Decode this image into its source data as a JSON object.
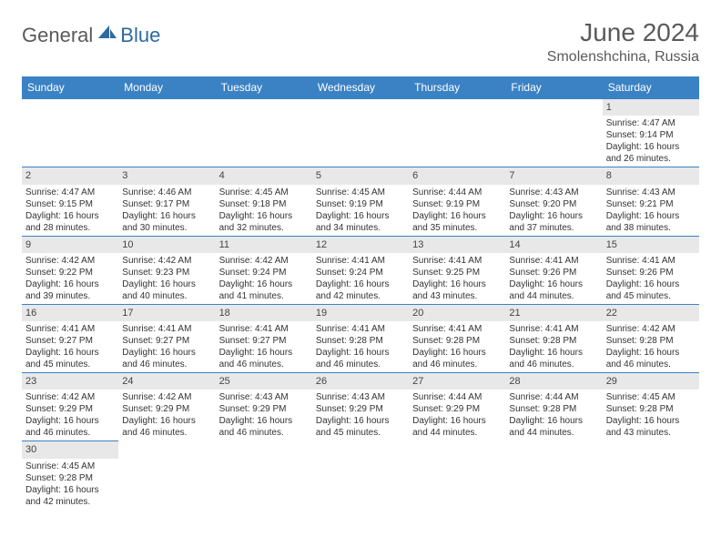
{
  "logo": {
    "text1": "General",
    "text2": "Blue"
  },
  "title": "June 2024",
  "location": "Smolenshchina, Russia",
  "colors": {
    "header_bg": "#3b82c4",
    "header_fg": "#ffffff",
    "daynum_bg": "#e8e8e8",
    "border": "#3b82c4",
    "logo_gray": "#5a5a5a",
    "logo_blue": "#2c6aa0"
  },
  "weekdays": [
    "Sunday",
    "Monday",
    "Tuesday",
    "Wednesday",
    "Thursday",
    "Friday",
    "Saturday"
  ],
  "weeks": [
    [
      {
        "day": "",
        "lines": [
          "",
          "",
          "",
          ""
        ],
        "empty": true
      },
      {
        "day": "",
        "lines": [
          "",
          "",
          "",
          ""
        ],
        "empty": true
      },
      {
        "day": "",
        "lines": [
          "",
          "",
          "",
          ""
        ],
        "empty": true
      },
      {
        "day": "",
        "lines": [
          "",
          "",
          "",
          ""
        ],
        "empty": true
      },
      {
        "day": "",
        "lines": [
          "",
          "",
          "",
          ""
        ],
        "empty": true
      },
      {
        "day": "",
        "lines": [
          "",
          "",
          "",
          ""
        ],
        "empty": true
      },
      {
        "day": "1",
        "lines": [
          "Sunrise: 4:47 AM",
          "Sunset: 9:14 PM",
          "Daylight: 16 hours",
          "and 26 minutes."
        ]
      }
    ],
    [
      {
        "day": "2",
        "lines": [
          "Sunrise: 4:47 AM",
          "Sunset: 9:15 PM",
          "Daylight: 16 hours",
          "and 28 minutes."
        ]
      },
      {
        "day": "3",
        "lines": [
          "Sunrise: 4:46 AM",
          "Sunset: 9:17 PM",
          "Daylight: 16 hours",
          "and 30 minutes."
        ]
      },
      {
        "day": "4",
        "lines": [
          "Sunrise: 4:45 AM",
          "Sunset: 9:18 PM",
          "Daylight: 16 hours",
          "and 32 minutes."
        ]
      },
      {
        "day": "5",
        "lines": [
          "Sunrise: 4:45 AM",
          "Sunset: 9:19 PM",
          "Daylight: 16 hours",
          "and 34 minutes."
        ]
      },
      {
        "day": "6",
        "lines": [
          "Sunrise: 4:44 AM",
          "Sunset: 9:19 PM",
          "Daylight: 16 hours",
          "and 35 minutes."
        ]
      },
      {
        "day": "7",
        "lines": [
          "Sunrise: 4:43 AM",
          "Sunset: 9:20 PM",
          "Daylight: 16 hours",
          "and 37 minutes."
        ]
      },
      {
        "day": "8",
        "lines": [
          "Sunrise: 4:43 AM",
          "Sunset: 9:21 PM",
          "Daylight: 16 hours",
          "and 38 minutes."
        ]
      }
    ],
    [
      {
        "day": "9",
        "lines": [
          "Sunrise: 4:42 AM",
          "Sunset: 9:22 PM",
          "Daylight: 16 hours",
          "and 39 minutes."
        ]
      },
      {
        "day": "10",
        "lines": [
          "Sunrise: 4:42 AM",
          "Sunset: 9:23 PM",
          "Daylight: 16 hours",
          "and 40 minutes."
        ]
      },
      {
        "day": "11",
        "lines": [
          "Sunrise: 4:42 AM",
          "Sunset: 9:24 PM",
          "Daylight: 16 hours",
          "and 41 minutes."
        ]
      },
      {
        "day": "12",
        "lines": [
          "Sunrise: 4:41 AM",
          "Sunset: 9:24 PM",
          "Daylight: 16 hours",
          "and 42 minutes."
        ]
      },
      {
        "day": "13",
        "lines": [
          "Sunrise: 4:41 AM",
          "Sunset: 9:25 PM",
          "Daylight: 16 hours",
          "and 43 minutes."
        ]
      },
      {
        "day": "14",
        "lines": [
          "Sunrise: 4:41 AM",
          "Sunset: 9:26 PM",
          "Daylight: 16 hours",
          "and 44 minutes."
        ]
      },
      {
        "day": "15",
        "lines": [
          "Sunrise: 4:41 AM",
          "Sunset: 9:26 PM",
          "Daylight: 16 hours",
          "and 45 minutes."
        ]
      }
    ],
    [
      {
        "day": "16",
        "lines": [
          "Sunrise: 4:41 AM",
          "Sunset: 9:27 PM",
          "Daylight: 16 hours",
          "and 45 minutes."
        ]
      },
      {
        "day": "17",
        "lines": [
          "Sunrise: 4:41 AM",
          "Sunset: 9:27 PM",
          "Daylight: 16 hours",
          "and 46 minutes."
        ]
      },
      {
        "day": "18",
        "lines": [
          "Sunrise: 4:41 AM",
          "Sunset: 9:27 PM",
          "Daylight: 16 hours",
          "and 46 minutes."
        ]
      },
      {
        "day": "19",
        "lines": [
          "Sunrise: 4:41 AM",
          "Sunset: 9:28 PM",
          "Daylight: 16 hours",
          "and 46 minutes."
        ]
      },
      {
        "day": "20",
        "lines": [
          "Sunrise: 4:41 AM",
          "Sunset: 9:28 PM",
          "Daylight: 16 hours",
          "and 46 minutes."
        ]
      },
      {
        "day": "21",
        "lines": [
          "Sunrise: 4:41 AM",
          "Sunset: 9:28 PM",
          "Daylight: 16 hours",
          "and 46 minutes."
        ]
      },
      {
        "day": "22",
        "lines": [
          "Sunrise: 4:42 AM",
          "Sunset: 9:28 PM",
          "Daylight: 16 hours",
          "and 46 minutes."
        ]
      }
    ],
    [
      {
        "day": "23",
        "lines": [
          "Sunrise: 4:42 AM",
          "Sunset: 9:29 PM",
          "Daylight: 16 hours",
          "and 46 minutes."
        ]
      },
      {
        "day": "24",
        "lines": [
          "Sunrise: 4:42 AM",
          "Sunset: 9:29 PM",
          "Daylight: 16 hours",
          "and 46 minutes."
        ]
      },
      {
        "day": "25",
        "lines": [
          "Sunrise: 4:43 AM",
          "Sunset: 9:29 PM",
          "Daylight: 16 hours",
          "and 46 minutes."
        ]
      },
      {
        "day": "26",
        "lines": [
          "Sunrise: 4:43 AM",
          "Sunset: 9:29 PM",
          "Daylight: 16 hours",
          "and 45 minutes."
        ]
      },
      {
        "day": "27",
        "lines": [
          "Sunrise: 4:44 AM",
          "Sunset: 9:29 PM",
          "Daylight: 16 hours",
          "and 44 minutes."
        ]
      },
      {
        "day": "28",
        "lines": [
          "Sunrise: 4:44 AM",
          "Sunset: 9:28 PM",
          "Daylight: 16 hours",
          "and 44 minutes."
        ]
      },
      {
        "day": "29",
        "lines": [
          "Sunrise: 4:45 AM",
          "Sunset: 9:28 PM",
          "Daylight: 16 hours",
          "and 43 minutes."
        ]
      }
    ],
    [
      {
        "day": "30",
        "lines": [
          "Sunrise: 4:45 AM",
          "Sunset: 9:28 PM",
          "Daylight: 16 hours",
          "and 42 minutes."
        ]
      },
      {
        "day": "",
        "lines": [
          "",
          "",
          "",
          ""
        ],
        "empty": true
      },
      {
        "day": "",
        "lines": [
          "",
          "",
          "",
          ""
        ],
        "empty": true
      },
      {
        "day": "",
        "lines": [
          "",
          "",
          "",
          ""
        ],
        "empty": true
      },
      {
        "day": "",
        "lines": [
          "",
          "",
          "",
          ""
        ],
        "empty": true
      },
      {
        "day": "",
        "lines": [
          "",
          "",
          "",
          ""
        ],
        "empty": true
      },
      {
        "day": "",
        "lines": [
          "",
          "",
          "",
          ""
        ],
        "empty": true
      }
    ]
  ]
}
